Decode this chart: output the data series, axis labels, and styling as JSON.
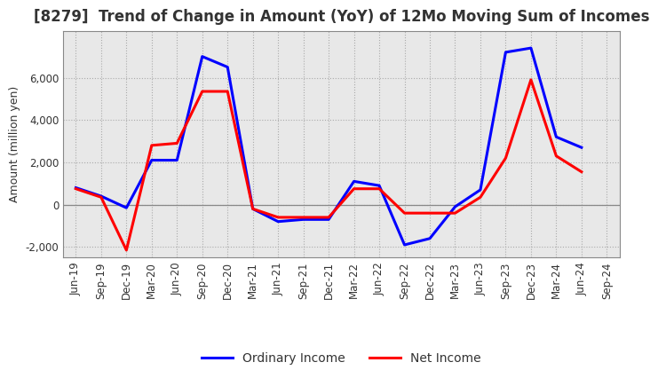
{
  "title": "[8279]  Trend of Change in Amount (YoY) of 12Mo Moving Sum of Incomes",
  "ylabel": "Amount (million yen)",
  "plot_bg_color": "#e8e8e8",
  "fig_bg_color": "#ffffff",
  "grid_color": "#aaaaaa",
  "x_labels": [
    "Jun-19",
    "Sep-19",
    "Dec-19",
    "Mar-20",
    "Jun-20",
    "Sep-20",
    "Dec-20",
    "Mar-21",
    "Jun-21",
    "Sep-21",
    "Dec-21",
    "Mar-22",
    "Jun-22",
    "Sep-22",
    "Dec-22",
    "Mar-23",
    "Jun-23",
    "Sep-23",
    "Dec-23",
    "Mar-24",
    "Jun-24",
    "Sep-24"
  ],
  "ordinary_income": [
    800,
    400,
    -150,
    2100,
    2100,
    7000,
    6500,
    -200,
    -800,
    -700,
    -700,
    1100,
    900,
    -1900,
    -1600,
    -100,
    700,
    7200,
    7400,
    3200,
    2700,
    null
  ],
  "net_income": [
    750,
    350,
    -2150,
    2800,
    2900,
    5350,
    5350,
    -200,
    -600,
    -600,
    -600,
    750,
    750,
    -400,
    -400,
    -400,
    350,
    2200,
    5900,
    2300,
    1550,
    null
  ],
  "ylim": [
    -2500,
    8200
  ],
  "yticks": [
    -2000,
    0,
    2000,
    4000,
    6000
  ],
  "line_color_ordinary": "#0000ff",
  "line_color_net": "#ff0000",
  "line_width": 2.2,
  "title_fontsize": 12,
  "label_fontsize": 9,
  "tick_fontsize": 8.5,
  "legend_fontsize": 10
}
